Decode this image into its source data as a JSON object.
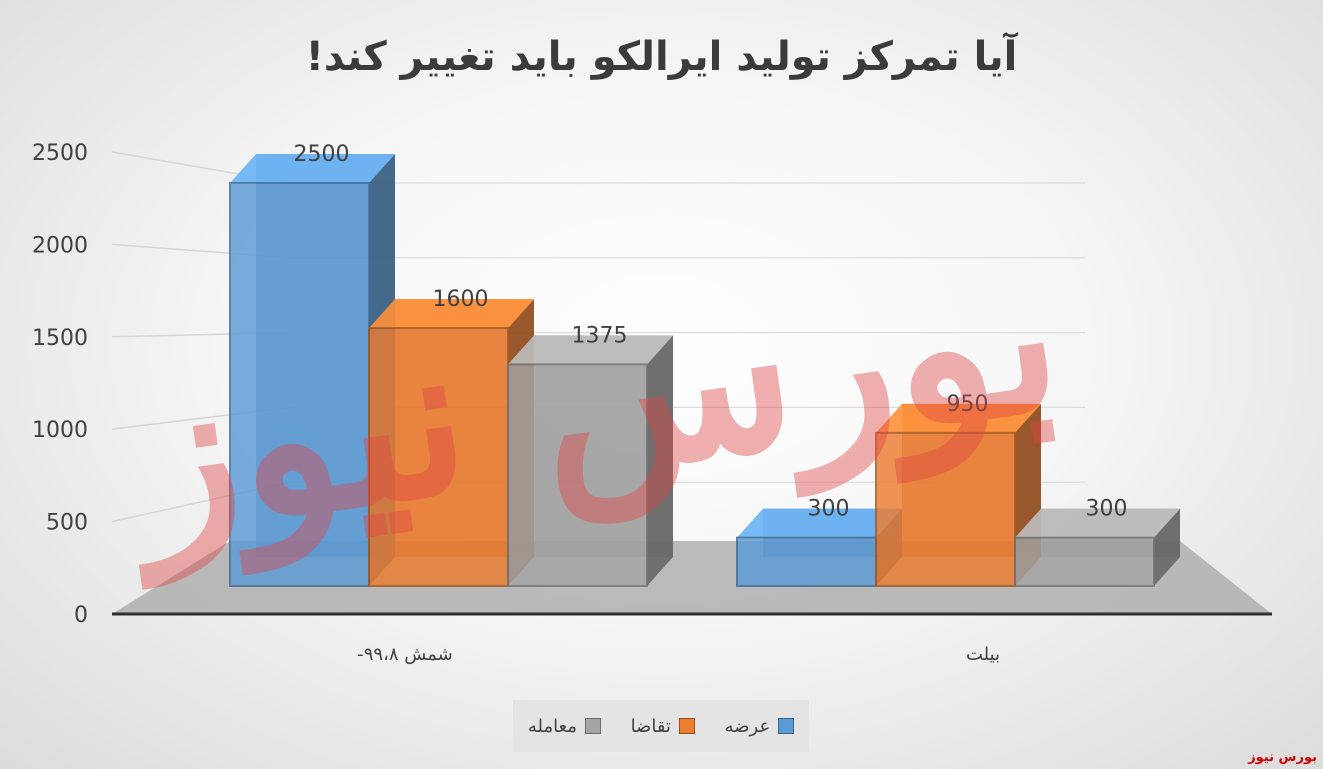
{
  "chart_data": {
    "type": "bar",
    "title": "آیا تمرکز تولید ایرالکو باید تغییر کند!",
    "categories": [
      "شمش ۹۹،۸-",
      "بیلت"
    ],
    "series": [
      {
        "name": "عرضه",
        "values": [
          2500,
          300
        ],
        "color": "#5b9bd5"
      },
      {
        "name": "تقاضا",
        "values": [
          1600,
          950
        ],
        "color": "#ed7d31"
      },
      {
        "name": "معامله",
        "values": [
          1375,
          300
        ],
        "color": "#a5a5a5"
      }
    ],
    "yticks": [
      "0",
      "500",
      "1000",
      "1500",
      "2000",
      "2500"
    ],
    "ylim": [
      0,
      2500
    ],
    "grid": true,
    "legend": "bottom",
    "style": "3d-column"
  },
  "watermark": {
    "large_text": "بورس نیوز",
    "corner_text": "بورس نیوز"
  }
}
